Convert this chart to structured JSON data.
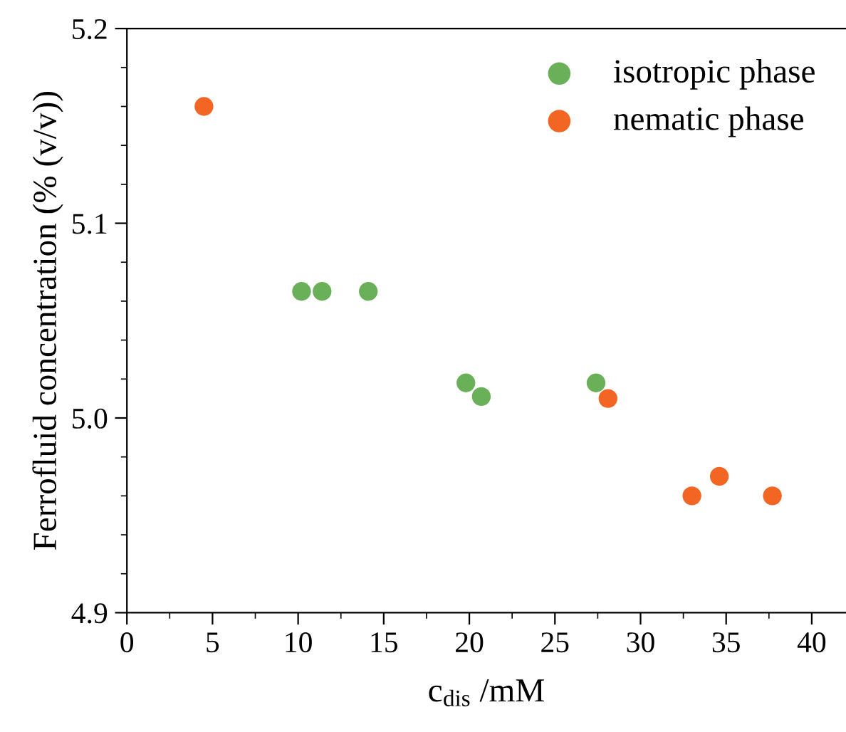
{
  "chart_data": {
    "type": "scatter",
    "xlabel": "c$_{dis}$ /mM",
    "ylabel": "Ferrofluid concentration (% (v/v))",
    "series": [
      {
        "name": "isotropic phase",
        "color": "#6ab058",
        "x": [
          10.2,
          11.4,
          14.1,
          19.8,
          20.7,
          27.4
        ],
        "values": [
          5.065,
          5.065,
          5.065,
          5.018,
          5.011,
          5.018
        ]
      },
      {
        "name": "nematic phase",
        "color": "#f26522",
        "x": [
          4.5,
          28.1,
          33.0,
          34.6,
          37.7
        ],
        "values": [
          5.16,
          5.01,
          4.96,
          4.97,
          4.96
        ]
      }
    ],
    "xlim": [
      0,
      42
    ],
    "ylim": [
      4.9,
      5.2
    ],
    "xticks": [
      0,
      {
        "value": 2.5,
        "label": null
      },
      5,
      {
        "value": 7.5,
        "label": null
      },
      10,
      {
        "value": 12.5,
        "label": null
      },
      15,
      {
        "value": 17.5,
        "label": null
      },
      20,
      {
        "value": 22.5,
        "label": null
      },
      25,
      {
        "value": 27.5,
        "label": null
      },
      30,
      {
        "value": 32.5,
        "label": null
      },
      35,
      {
        "value": 37.5,
        "label": null
      },
      40
    ],
    "yticks": [
      4.9,
      {
        "value": 4.92,
        "label": null
      },
      {
        "value": 4.94,
        "label": null
      },
      {
        "value": 4.96,
        "label": null
      },
      {
        "value": 4.98,
        "label": null
      },
      {
        "value": 5.0,
        "label": "5.0"
      },
      {
        "value": 5.02,
        "label": null
      },
      {
        "value": 5.04,
        "label": null
      },
      {
        "value": 5.06,
        "label": null
      },
      {
        "value": 5.08,
        "label": null
      },
      5.1,
      {
        "value": 5.12,
        "label": null
      },
      {
        "value": 5.14,
        "label": null
      },
      {
        "value": 5.16,
        "label": null
      },
      {
        "value": 5.18,
        "label": null
      },
      5.2
    ],
    "marker": "circle",
    "legend": "top right",
    "grid": false
  }
}
